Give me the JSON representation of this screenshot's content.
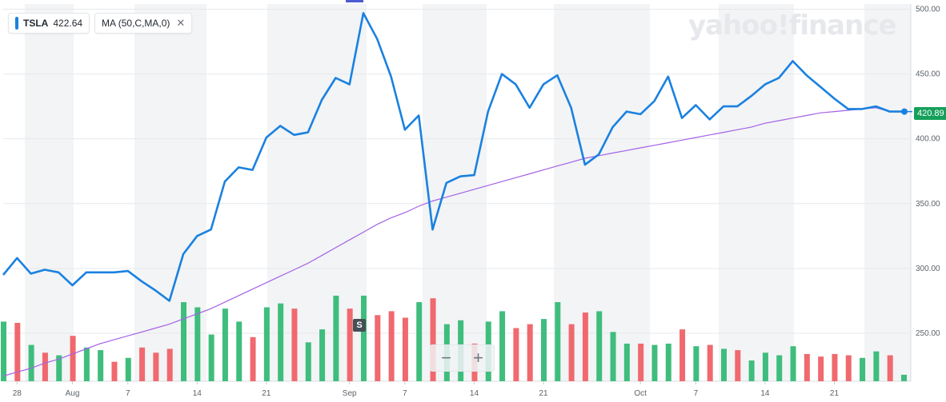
{
  "legend": {
    "symbol": "TSLA",
    "price": "422.64",
    "indicator": "MA (50,C,MA,0)",
    "close_icon": "close-icon"
  },
  "logo": "yahoo!finance",
  "price_tag": "420.89",
  "split_marker": "S",
  "zoom": {
    "minus": "−",
    "plus": "+"
  },
  "colors": {
    "price": "#1a81e0",
    "ma": "#a561e6",
    "up": "#3fbd7d",
    "down": "#f0696e",
    "grid": "#e6e9ec",
    "band": "#f2f4f5"
  },
  "chart_data": {
    "type": "line",
    "yticks": [
      250,
      300,
      350,
      400,
      450,
      500
    ],
    "ylim": [
      213,
      504
    ],
    "xticks": [
      {
        "label": "28",
        "i": 1
      },
      {
        "label": "Aug",
        "i": 5
      },
      {
        "label": "7",
        "i": 9
      },
      {
        "label": "14",
        "i": 14
      },
      {
        "label": "21",
        "i": 19
      },
      {
        "label": "Sep",
        "i": 25
      },
      {
        "label": "7",
        "i": 29
      },
      {
        "label": "14",
        "i": 34
      },
      {
        "label": "21",
        "i": 39
      },
      {
        "label": "Oct",
        "i": 46
      },
      {
        "label": "7",
        "i": 50
      },
      {
        "label": "14",
        "i": 55
      },
      {
        "label": "21",
        "i": 60
      }
    ],
    "series": [
      {
        "values": [
          295,
          308,
          296,
          299,
          297,
          287,
          297,
          297,
          297,
          298,
          290,
          283,
          275,
          311,
          325,
          330,
          367,
          378,
          376,
          401,
          410,
          403,
          405,
          430,
          447,
          442,
          497,
          477,
          448,
          407,
          418,
          330,
          366,
          371,
          372,
          421,
          450,
          442,
          424,
          442,
          449,
          424,
          380,
          388,
          409,
          421,
          419,
          429,
          448,
          416,
          426,
          415,
          425,
          425,
          433,
          442,
          447,
          460,
          449,
          440,
          431,
          423,
          423,
          425,
          421,
          421
        ]
      },
      {
        "values": [
          217,
          220,
          223,
          227,
          230,
          234,
          238,
          242,
          245,
          248,
          251,
          254,
          257,
          261,
          265,
          269,
          274,
          279,
          284,
          289,
          294,
          299,
          304,
          310,
          316,
          322,
          328,
          334,
          339,
          343,
          348,
          352,
          355,
          358,
          361,
          364,
          367,
          370,
          373,
          376,
          379,
          382,
          385,
          387,
          389,
          391,
          393,
          395,
          397,
          399,
          401,
          403,
          405,
          407,
          409,
          412,
          414,
          416,
          418,
          420,
          421,
          422,
          423,
          424,
          421,
          421
        ]
      }
    ],
    "volume": [
      {
        "h": 259,
        "up": true
      },
      {
        "h": 258,
        "up": false
      },
      {
        "h": 241,
        "up": true
      },
      {
        "h": 235,
        "up": false
      },
      {
        "h": 233,
        "up": true
      },
      {
        "h": 248,
        "up": false
      },
      {
        "h": 239,
        "up": true
      },
      {
        "h": 237,
        "up": true
      },
      {
        "h": 228,
        "up": false
      },
      {
        "h": 231,
        "up": true
      },
      {
        "h": 239,
        "up": false
      },
      {
        "h": 235,
        "up": false
      },
      {
        "h": 238,
        "up": false
      },
      {
        "h": 274,
        "up": true
      },
      {
        "h": 270,
        "up": true
      },
      {
        "h": 249,
        "up": true
      },
      {
        "h": 269,
        "up": true
      },
      {
        "h": 259,
        "up": true
      },
      {
        "h": 247,
        "up": false
      },
      {
        "h": 270,
        "up": true
      },
      {
        "h": 273,
        "up": true
      },
      {
        "h": 269,
        "up": false
      },
      {
        "h": 243,
        "up": true
      },
      {
        "h": 253,
        "up": true
      },
      {
        "h": 279,
        "up": true
      },
      {
        "h": 269,
        "up": false
      },
      {
        "h": 279,
        "up": true
      },
      {
        "h": 264,
        "up": false
      },
      {
        "h": 267,
        "up": false
      },
      {
        "h": 262,
        "up": false
      },
      {
        "h": 274,
        "up": true
      },
      {
        "h": 277,
        "up": false
      },
      {
        "h": 257,
        "up": true
      },
      {
        "h": 260,
        "up": true
      },
      {
        "h": 242,
        "up": false
      },
      {
        "h": 259,
        "up": true
      },
      {
        "h": 267,
        "up": true
      },
      {
        "h": 254,
        "up": false
      },
      {
        "h": 257,
        "up": false
      },
      {
        "h": 261,
        "up": true
      },
      {
        "h": 274,
        "up": true
      },
      {
        "h": 257,
        "up": false
      },
      {
        "h": 266,
        "up": false
      },
      {
        "h": 267,
        "up": true
      },
      {
        "h": 251,
        "up": true
      },
      {
        "h": 242,
        "up": true
      },
      {
        "h": 242,
        "up": false
      },
      {
        "h": 241,
        "up": true
      },
      {
        "h": 242,
        "up": true
      },
      {
        "h": 253,
        "up": false
      },
      {
        "h": 240,
        "up": true
      },
      {
        "h": 241,
        "up": false
      },
      {
        "h": 238,
        "up": true
      },
      {
        "h": 237,
        "up": false
      },
      {
        "h": 229,
        "up": true
      },
      {
        "h": 235,
        "up": true
      },
      {
        "h": 233,
        "up": true
      },
      {
        "h": 240,
        "up": true
      },
      {
        "h": 234,
        "up": false
      },
      {
        "h": 232,
        "up": false
      },
      {
        "h": 234,
        "up": false
      },
      {
        "h": 233,
        "up": false
      },
      {
        "h": 231,
        "up": true
      },
      {
        "h": 236,
        "up": true
      },
      {
        "h": 233,
        "up": false
      },
      {
        "h": 218,
        "up": true
      }
    ]
  }
}
